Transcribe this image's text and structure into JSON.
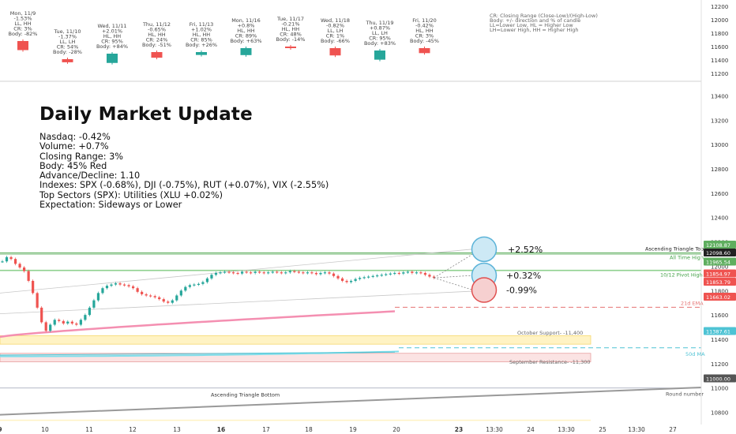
{
  "chart_data": {
    "type": "candlestick",
    "top_panel": {
      "days": [
        {
          "label": "Mon, 11/9",
          "change": "-1.53%",
          "hl": "LL, HH",
          "cr": "CR: 3%",
          "body": "Body: -82%",
          "dir": "down",
          "body_pct": 82
        },
        {
          "label": "Tue, 11/10",
          "change": "-1.37%",
          "hl": "LL, LH",
          "cr": "CR: 54%",
          "body": "Body: -28%",
          "dir": "down",
          "body_pct": 28
        },
        {
          "label": "Wed, 11/11",
          "change": "+2.01%",
          "hl": "HL, HH",
          "cr": "CR: 95%",
          "body": "Body: +84%",
          "dir": "up",
          "body_pct": 84
        },
        {
          "label": "Thu, 11/12",
          "change": "-0.65%",
          "hl": "HL, HH",
          "cr": "CR: 24%",
          "body": "Body: -51%",
          "dir": "down",
          "body_pct": 51
        },
        {
          "label": "Fri, 11/13",
          "change": "+1.02%",
          "hl": "HL, HH",
          "cr": "CR: 85%",
          "body": "Body: +26%",
          "dir": "up",
          "body_pct": 26
        },
        {
          "label": "Mon, 11/16",
          "change": "+0.8%",
          "hl": "HL, HH",
          "cr": "CR: 89%",
          "body": "Body: +63%",
          "dir": "up",
          "body_pct": 63
        },
        {
          "label": "Tue, 11/17",
          "change": "-0.21%",
          "hl": "HL, HH",
          "cr": "CR: 48%",
          "body": "Body: -14%",
          "dir": "down",
          "body_pct": 14
        },
        {
          "label": "Wed, 11/18",
          "change": "-0.82%",
          "hl": "LL, LH",
          "cr": "CR: 1%",
          "body": "Body: -66%",
          "dir": "down",
          "body_pct": 66
        },
        {
          "label": "Thu, 11/19",
          "change": "+0.87%",
          "hl": "LL, LH",
          "cr": "CR: 95%",
          "body": "Body: +83%",
          "dir": "up",
          "body_pct": 83
        },
        {
          "label": "Fri, 11/20",
          "change": "-0.42%",
          "hl": "HL, HH",
          "cr": "CR: 3%",
          "body": "Body: -45%",
          "dir": "down",
          "body_pct": 45
        }
      ],
      "legend": [
        "CR: Closing Range (Close-Low)/(High-Low)",
        "Body: +/- direction and % of candle",
        "LL=Lower Low, HL = Higher Low",
        "LH=Lower High, HH = Higher High"
      ],
      "yticks": [
        12200,
        12000,
        11800,
        11600,
        11400,
        11200
      ]
    },
    "title": "Daily Market Update",
    "info_lines": [
      "Nasdaq: -0.42%",
      "Volume: +0.7%",
      "Closing Range: 3%",
      "Body: 45% Red",
      "Advance/Decline: 1.10",
      "Indexes: SPX (-0.68%), DJI (-0.75%), RUT (+0.07%), VIX (-2.55%)",
      "Top Sectors (SPX): Utilities (XLU +0.02%)",
      "Expectation: Sideways or Lower"
    ],
    "ylim": [
      10700,
      13500
    ],
    "yticks": [
      13400,
      13200,
      13000,
      12800,
      12600,
      12400,
      12200,
      12000,
      11800,
      11600,
      11400,
      11200,
      11000,
      10800
    ],
    "xticks": [
      {
        "label": "9",
        "pos": 0
      },
      {
        "label": "10",
        "pos": 1
      },
      {
        "label": "11",
        "pos": 2
      },
      {
        "label": "12",
        "pos": 3
      },
      {
        "label": "13",
        "pos": 4
      },
      {
        "label": "16",
        "pos": 5
      },
      {
        "label": "17",
        "pos": 6
      },
      {
        "label": "18",
        "pos": 7
      },
      {
        "label": "19",
        "pos": 8
      },
      {
        "label": "20",
        "pos": 9
      },
      {
        "label": "23",
        "pos": 10
      },
      {
        "label": "13:30",
        "pos": 10.8
      },
      {
        "label": "24",
        "pos": 11.6
      },
      {
        "label": "13:30",
        "pos": 12.4
      },
      {
        "label": "25",
        "pos": 13.2
      },
      {
        "label": "13:30",
        "pos": 14
      },
      {
        "label": "27",
        "pos": 14.8
      }
    ],
    "price_series": [
      [
        0,
        12040
      ],
      [
        0.1,
        12075
      ],
      [
        0.2,
        12060
      ],
      [
        0.3,
        12020
      ],
      [
        0.4,
        11990
      ],
      [
        0.5,
        11960
      ],
      [
        0.6,
        11880
      ],
      [
        0.7,
        11780
      ],
      [
        0.8,
        11660
      ],
      [
        0.9,
        11540
      ],
      [
        1.0,
        11470
      ],
      [
        1.1,
        11520
      ],
      [
        1.2,
        11560
      ],
      [
        1.3,
        11550
      ],
      [
        1.4,
        11530
      ],
      [
        1.5,
        11545
      ],
      [
        1.6,
        11530
      ],
      [
        1.7,
        11520
      ],
      [
        1.8,
        11560
      ],
      [
        1.9,
        11600
      ],
      [
        2.0,
        11660
      ],
      [
        2.1,
        11720
      ],
      [
        2.2,
        11780
      ],
      [
        2.3,
        11820
      ],
      [
        2.4,
        11840
      ],
      [
        2.5,
        11850
      ],
      [
        2.6,
        11860
      ],
      [
        2.7,
        11850
      ],
      [
        2.8,
        11845
      ],
      [
        2.9,
        11835
      ],
      [
        3.0,
        11820
      ],
      [
        3.1,
        11790
      ],
      [
        3.2,
        11770
      ],
      [
        3.3,
        11760
      ],
      [
        3.4,
        11755
      ],
      [
        3.5,
        11745
      ],
      [
        3.6,
        11730
      ],
      [
        3.7,
        11710
      ],
      [
        3.8,
        11700
      ],
      [
        3.9,
        11720
      ],
      [
        4.0,
        11760
      ],
      [
        4.1,
        11800
      ],
      [
        4.2,
        11830
      ],
      [
        4.3,
        11845
      ],
      [
        4.4,
        11850
      ],
      [
        4.5,
        11855
      ],
      [
        4.6,
        11870
      ],
      [
        4.7,
        11900
      ],
      [
        4.8,
        11930
      ],
      [
        4.9,
        11945
      ],
      [
        5.0,
        11950
      ],
      [
        5.1,
        11955
      ],
      [
        5.2,
        11950
      ],
      [
        5.3,
        11945
      ],
      [
        5.4,
        11940
      ],
      [
        5.5,
        11955
      ],
      [
        5.6,
        11950
      ],
      [
        5.7,
        11945
      ],
      [
        5.8,
        11955
      ],
      [
        5.9,
        11950
      ],
      [
        6.0,
        11945
      ],
      [
        6.1,
        11950
      ],
      [
        6.2,
        11955
      ],
      [
        6.3,
        11950
      ],
      [
        6.4,
        11945
      ],
      [
        6.5,
        11950
      ],
      [
        6.6,
        11960
      ],
      [
        6.7,
        11955
      ],
      [
        6.8,
        11950
      ],
      [
        6.9,
        11945
      ],
      [
        7.0,
        11950
      ],
      [
        7.1,
        11945
      ],
      [
        7.2,
        11935
      ],
      [
        7.3,
        11945
      ],
      [
        7.4,
        11950
      ],
      [
        7.5,
        11940
      ],
      [
        7.6,
        11920
      ],
      [
        7.7,
        11900
      ],
      [
        7.8,
        11880
      ],
      [
        7.9,
        11870
      ],
      [
        8.0,
        11880
      ],
      [
        8.1,
        11895
      ],
      [
        8.2,
        11905
      ],
      [
        8.3,
        11910
      ],
      [
        8.4,
        11915
      ],
      [
        8.5,
        11920
      ],
      [
        8.6,
        11925
      ],
      [
        8.7,
        11930
      ],
      [
        8.8,
        11935
      ],
      [
        8.9,
        11940
      ],
      [
        9.0,
        11945
      ],
      [
        9.1,
        11940
      ],
      [
        9.2,
        11950
      ],
      [
        9.3,
        11955
      ],
      [
        9.4,
        11945
      ],
      [
        9.5,
        11950
      ],
      [
        9.6,
        11945
      ],
      [
        9.7,
        11930
      ],
      [
        9.8,
        11915
      ],
      [
        9.9,
        11905
      ]
    ],
    "projections": [
      {
        "label": "+2.52%",
        "target": 12140,
        "color": "#6ec4e6"
      },
      {
        "label": "+0.32%",
        "target": 11925,
        "color": "#6ec4e6"
      },
      {
        "label": "-0.99%",
        "target": 11795,
        "color": "#e07070"
      }
    ],
    "levels": [
      {
        "label": "Ascending Triangle Top",
        "value": 12108.87,
        "tag": "12108.87",
        "color": "#4caf50"
      },
      {
        "label": "All Time High",
        "value": 12098.6,
        "tag": "12098.60",
        "color": "#4caf50"
      },
      {
        "label": "10/12 Pivot High",
        "value": 11965.54,
        "tag": "11965.54",
        "color": "#4caf50"
      },
      {
        "label": "21d EMA",
        "value": 11663.02,
        "tag": "11663.02",
        "color": "#e57373"
      },
      {
        "label": "October Support- -11,400",
        "value": 11400,
        "tag": "",
        "color": "#f5d76e"
      },
      {
        "label": "50d MA",
        "value": 11387.61,
        "tag": "11387.61",
        "color": "#4ec3d4"
      },
      {
        "label": "September Resistance- -11,300",
        "value": 11300,
        "tag": "",
        "color": "#e8a0a0"
      },
      {
        "label": "Round number",
        "value": 11000,
        "tag": "11000.00",
        "color": "#555555"
      },
      {
        "label": "Ascending Triangle Bottom",
        "value": 10950,
        "tag": "",
        "color": "#888888"
      }
    ],
    "price_tags": [
      {
        "value": 11854.97,
        "tag": "11854.97",
        "color": "#ef5350"
      },
      {
        "value": 11853.79,
        "tag": "11853.79",
        "color": "#ef5350"
      }
    ],
    "colors": {
      "up": "#26a69a",
      "down": "#ef5350",
      "ema": "#f48fb1",
      "ma50": "#80deea"
    }
  }
}
